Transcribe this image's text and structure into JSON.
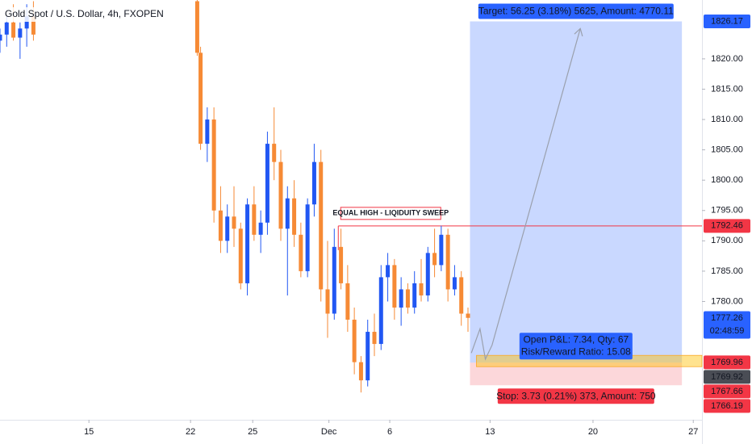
{
  "chart_data": {
    "type": "candlestick",
    "title": "Gold Spot / U.S. Dollar, 4h, FXOPEN",
    "up_color": "#2157f3",
    "down_color": "#f68a35",
    "x": [
      0,
      1,
      2,
      3,
      4,
      5,
      29.5,
      30,
      31,
      32,
      33,
      34,
      35,
      36,
      37,
      38,
      39,
      40,
      41,
      42,
      43,
      44,
      45,
      46,
      47,
      48,
      49,
      50,
      51,
      52,
      53,
      54,
      55,
      56,
      57,
      58,
      59,
      60,
      61,
      62,
      63,
      64,
      65,
      66,
      67,
      68,
      69,
      70
    ],
    "open": [
      1823,
      1824,
      1826,
      1823.5,
      1825,
      1827,
      1829.5,
      1821,
      1806,
      1810,
      1795,
      1790,
      1794,
      1792,
      1783,
      1796,
      1791,
      1793,
      1806,
      1803,
      1792,
      1797,
      1791,
      1785,
      1796,
      1803,
      1782,
      1778,
      1789,
      1783,
      1777,
      1770,
      1767,
      1775,
      1773,
      1784,
      1786,
      1779,
      1782,
      1779,
      1783,
      1781,
      1788,
      1786,
      1791,
      1782,
      1784,
      1778
    ],
    "high": [
      1825,
      1827,
      1829,
      1826,
      1829,
      1829.5,
      1829.7,
      1822,
      1812,
      1812,
      1799,
      1796,
      1799,
      1793,
      1797,
      1799,
      1795,
      1808,
      1812,
      1805,
      1799,
      1800,
      1793,
      1797,
      1806,
      1805,
      1790,
      1792,
      1792,
      1786,
      1779,
      1771,
      1777,
      1778,
      1786,
      1788,
      1787,
      1784,
      1783,
      1785,
      1787,
      1789,
      1792,
      1792.5,
      1792,
      1786,
      1785,
      1779
    ],
    "low": [
      1821,
      1822,
      1823,
      1820,
      1822,
      1823,
      1820.5,
      1805,
      1803,
      1793,
      1788,
      1788,
      1789,
      1782,
      1781,
      1790,
      1788,
      1791,
      1800,
      1790,
      1781,
      1789,
      1784,
      1784,
      1794,
      1780,
      1774,
      1777,
      1782,
      1775,
      1768,
      1765,
      1766,
      1771,
      1772,
      1780,
      1777,
      1776,
      1778,
      1778,
      1780,
      1780,
      1784,
      1785,
      1780,
      1781,
      1776,
      1775
    ],
    "close": [
      1824,
      1826,
      1823.5,
      1825,
      1827,
      1824,
      1821,
      1806,
      1810,
      1795,
      1790,
      1794,
      1792,
      1783,
      1796,
      1791,
      1793,
      1806,
      1803,
      1792,
      1797,
      1791,
      1785,
      1796,
      1803,
      1782,
      1778,
      1789,
      1783,
      1777,
      1770,
      1767,
      1775,
      1773,
      1784,
      1786,
      1779,
      1782,
      1779,
      1783,
      1781,
      1788,
      1786,
      1791,
      1782,
      1784,
      1778,
      1777.3
    ],
    "xlim": [
      0,
      105
    ],
    "xticks": [
      {
        "value": 13.3,
        "label": "15"
      },
      {
        "value": 28.5,
        "label": "22"
      },
      {
        "value": 37.8,
        "label": "25"
      },
      {
        "value": 49.2,
        "label": "Dec"
      },
      {
        "value": 58.3,
        "label": "6"
      },
      {
        "value": 73.3,
        "label": "13"
      },
      {
        "value": 88.7,
        "label": "20"
      },
      {
        "value": 103.7,
        "label": "27"
      }
    ],
    "ylim": [
      1760.5,
      1829.7
    ],
    "yticks": [
      {
        "value": 1780,
        "label": "1780.00"
      },
      {
        "value": 1785,
        "label": "1785.00"
      },
      {
        "value": 1790,
        "label": "1790.00"
      },
      {
        "value": 1795,
        "label": "1795.00"
      },
      {
        "value": 1800,
        "label": "1800.00"
      },
      {
        "value": 1805,
        "label": "1805.00"
      },
      {
        "value": 1810,
        "label": "1810.00"
      },
      {
        "value": 1815,
        "label": "1815.00"
      },
      {
        "value": 1820,
        "label": "1820.00"
      }
    ],
    "price_labels": [
      {
        "value": 1826.17,
        "color": "#2962ff"
      },
      {
        "value": 1792.46,
        "color": "#f23645"
      },
      {
        "value": 1777.26,
        "color": "#2962ff"
      },
      {
        "value": 1769.96,
        "color": "#f23645"
      },
      {
        "value": 1769.92,
        "color": "#4a4d55"
      },
      {
        "value": 1767.66,
        "color": "#f23645"
      },
      {
        "value": 1766.19,
        "color": "#f23645"
      }
    ],
    "countdown": "02:48:59",
    "level": {
      "value": 1792.46,
      "start": 50.6,
      "label": "EQUAL HIGH - LIQIDUITY SWEEP"
    },
    "position": {
      "start": 70.3,
      "end": 102,
      "entry": 1769.92,
      "target": 1826.17,
      "stop": 1766.19,
      "target_label": "Target: 56.25 (3.18%) 5625, Amount: 4770.11",
      "stop_label": "Stop: 3.73 (0.21%) 373, Amount: 750",
      "pnl_label": "Open P&L: 7.34, Qty: 67",
      "rr_label": "Risk/Reward Ratio: 15.08"
    },
    "projection": {
      "x": [
        70.5,
        71.8,
        72.6,
        73.6,
        86.8
      ],
      "y": [
        1771.5,
        1775.5,
        1770.5,
        1772.8,
        1825
      ]
    }
  }
}
